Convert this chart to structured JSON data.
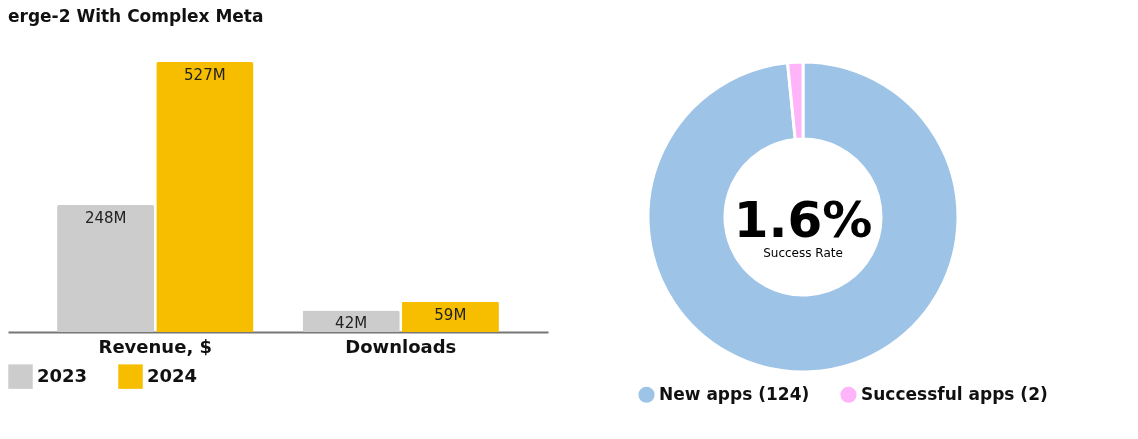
{
  "chart_data": [
    {
      "type": "bar",
      "title": "erge-2 With Complex Meta",
      "categories": [
        "Revenue, $",
        "Downloads"
      ],
      "series": [
        {
          "name": "2023",
          "color": "#cccccc",
          "values": [
            248,
            42
          ],
          "value_labels": [
            "248M",
            "42M"
          ]
        },
        {
          "name": "2024",
          "color": "#f7be00",
          "values": [
            527,
            59
          ],
          "value_labels": [
            "527M",
            "59M"
          ]
        }
      ],
      "legend": "bottom"
    },
    {
      "type": "donut",
      "categories": [
        "New apps (124)",
        "Successful apps (2)"
      ],
      "values": [
        124,
        2
      ],
      "colors": [
        "#9dc3e6",
        "#ffb3f9"
      ],
      "annotations": [
        "1.6%",
        "Success Rate"
      ],
      "legend": "bottom"
    }
  ]
}
